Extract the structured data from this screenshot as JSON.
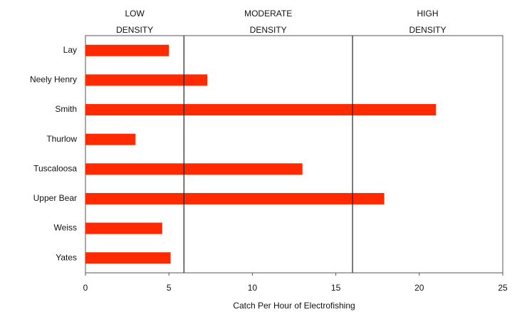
{
  "chart_data": {
    "type": "bar",
    "orientation": "horizontal",
    "categories": [
      "Lay",
      "Neely Henry",
      "Smith",
      "Thurlow",
      "Tuscaloosa",
      "Upper Bear",
      "Weiss",
      "Yates"
    ],
    "values": [
      5,
      7.3,
      21,
      3,
      13,
      17.9,
      4.6,
      5.1
    ],
    "color": "#ff2a00",
    "xlim": [
      0,
      25
    ],
    "xticks": [
      0,
      5,
      10,
      15,
      20,
      25
    ],
    "xlabel": "Catch Per Hour of Electrofishing",
    "thresholds": [
      5.9,
      16
    ],
    "regions": [
      [
        "LOW",
        "DENSITY"
      ],
      [
        "MODERATE",
        "DENSITY"
      ],
      [
        "HIGH",
        "DENSITY"
      ]
    ]
  }
}
